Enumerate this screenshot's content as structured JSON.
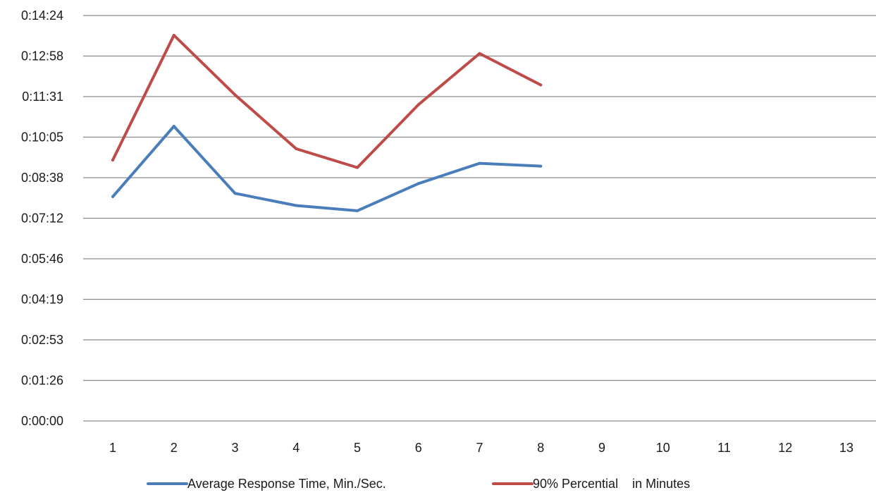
{
  "chart_data": {
    "type": "line",
    "title": "",
    "xlabel": "",
    "ylabel": "",
    "categories": [
      "1",
      "2",
      "3",
      "4",
      "5",
      "6",
      "7",
      "8",
      "9",
      "10",
      "11",
      "12",
      "13"
    ],
    "y_ticks": [
      "0:00:00",
      "0:01:26",
      "0:02:53",
      "0:04:19",
      "0:05:46",
      "0:07:12",
      "0:08:38",
      "0:10:05",
      "0:11:31",
      "0:12:58",
      "0:14:24"
    ],
    "y_tick_values_seconds": [
      0,
      86.4,
      172.8,
      259.2,
      345.6,
      432,
      518.4,
      604.8,
      691.2,
      777.6,
      864
    ],
    "y_unit": "seconds",
    "ylim": [
      0,
      864
    ],
    "grid": true,
    "legend_position": "bottom",
    "series": [
      {
        "name": "Average Response Time, Min./Sec.",
        "color": "#4a7ebb",
        "values": [
          478,
          628,
          485,
          459,
          448,
          506,
          549,
          543,
          null,
          null,
          null,
          null,
          null
        ]
      },
      {
        "name": "90% Percential    in Minutes",
        "color": "#be4b48",
        "values": [
          556,
          822,
          695,
          580,
          540,
          674,
          783,
          716,
          null,
          null,
          null,
          null,
          null
        ]
      }
    ]
  }
}
